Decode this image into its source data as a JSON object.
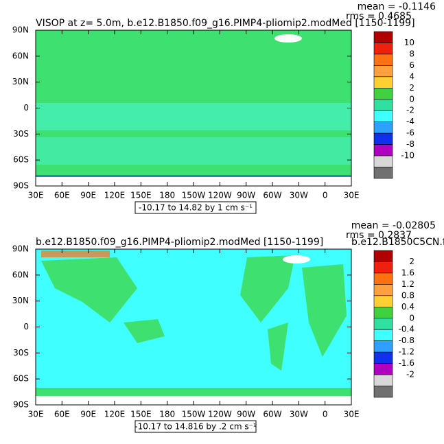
{
  "panels": [
    {
      "title": "VISOP at z=   5.0m, b.e12.B1850.f09_g16.PIMP4-pliomip2.modMed [1150-1199]",
      "title_right": "",
      "mean": "mean = -0.1146",
      "rms": "rms = 0.4685",
      "subtitle": "-10.17 to 14.82 by 1 cm s⁻¹",
      "ylabels": [
        "90N",
        "60N",
        "30N",
        "0",
        "30S",
        "60S",
        "90S"
      ],
      "xlabels": [
        "30E",
        "60E",
        "90E",
        "120E",
        "150E",
        "180",
        "150W",
        "120W",
        "90W",
        "60W",
        "30W",
        "0",
        "30E"
      ],
      "levels": [
        10,
        8,
        6,
        4,
        2,
        0,
        -2,
        -4,
        -6,
        -8,
        -10
      ],
      "colors": [
        "#b00000",
        "#f02010",
        "#ff7010",
        "#ffa040",
        "#ffd030",
        "#40d040",
        "#30e0a0",
        "#40ffff",
        "#30a0ff",
        "#1030f0",
        "#b000c0",
        "#d8d8d8",
        "#707070"
      ]
    },
    {
      "title": "b.e12.B1850.f09_g16.PIMP4-pliomip2.modMed [1150-1199]",
      "title_right": "b.e12.B1850C5CN.f",
      "mean": "mean = -0.02805",
      "rms": "rms = 0.2837",
      "subtitle": "-10.17 to 14.816 by .2 cm s⁻¹",
      "ylabels": [
        "90N",
        "60N",
        "30N",
        "0",
        "30S",
        "60S",
        "90S"
      ],
      "xlabels": [
        "30E",
        "60E",
        "90E",
        "120E",
        "150E",
        "180",
        "150W",
        "120W",
        "90W",
        "60W",
        "30W",
        "0",
        "30E"
      ],
      "levels": [
        2,
        1.6,
        1.2,
        0.8,
        0.4,
        0,
        -0.4,
        -0.8,
        -1.2,
        -1.6,
        -2
      ],
      "colors": [
        "#b00000",
        "#f02010",
        "#ff7010",
        "#ffa040",
        "#ffd030",
        "#40d040",
        "#30e0a0",
        "#40ffff",
        "#30a0ff",
        "#1030f0",
        "#b000c0",
        "#d8d8d8",
        "#707070"
      ]
    }
  ]
}
